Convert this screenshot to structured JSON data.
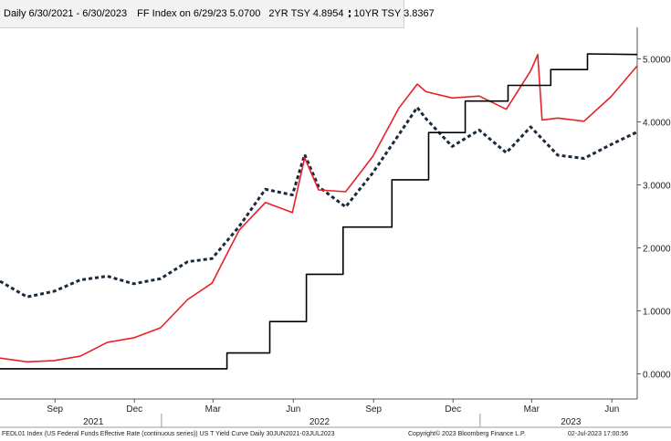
{
  "header": {
    "period": "Daily 6/30/2021 - 6/30/2023",
    "legend": [
      {
        "label": "FF Index on 6/29/23 5.0700",
        "color": "#000000"
      },
      {
        "label": "2YR TSY 4.8954",
        "color": "#e8202a"
      },
      {
        "label": "10YR TSY 3.8367",
        "color": "#1a2a3a"
      }
    ]
  },
  "footer": {
    "left": "FEDL01 Index (US Federal Funds Effective Rate (continuous series)) US T Yield Curve  Daily 30JUN2021-03JUL2023",
    "center": "Copyright© 2023 Bloomberg Finance L.P.",
    "right": "02-Jul-2023 17:00:56"
  },
  "chart_data": {
    "type": "line",
    "ylim": [
      -0.4,
      5.5
    ],
    "xlim": [
      "2021-06-30",
      "2023-06-30"
    ],
    "yticks": [
      "0.0000",
      "1.0000",
      "2.0000",
      "3.0000",
      "4.0000",
      "5.0000"
    ],
    "xticks_month": [
      {
        "label": "Sep",
        "date": "2021-09-01"
      },
      {
        "label": "Dec",
        "date": "2021-12-01"
      },
      {
        "label": "Mar",
        "date": "2022-03-01"
      },
      {
        "label": "Jun",
        "date": "2022-06-01"
      },
      {
        "label": "Sep",
        "date": "2022-09-01"
      },
      {
        "label": "Dec",
        "date": "2022-12-01"
      },
      {
        "label": "Mar",
        "date": "2023-03-01"
      },
      {
        "label": "Jun",
        "date": "2023-06-01"
      }
    ],
    "xticks_year": [
      {
        "label": "2021",
        "date": "2021-10-15"
      },
      {
        "label": "2022",
        "date": "2022-07-01"
      },
      {
        "label": "2023",
        "date": "2023-04-15"
      }
    ],
    "series": [
      {
        "name": "FF Index",
        "color": "#000000",
        "style": "solid",
        "x": [
          "2021-06-30",
          "2022-03-17",
          "2022-03-17",
          "2022-05-05",
          "2022-05-05",
          "2022-06-16",
          "2022-06-16",
          "2022-07-28",
          "2022-07-28",
          "2022-09-22",
          "2022-09-22",
          "2022-11-03",
          "2022-11-03",
          "2022-12-15",
          "2022-12-15",
          "2023-02-02",
          "2023-02-02",
          "2023-03-23",
          "2023-03-23",
          "2023-05-04",
          "2023-05-04",
          "2023-06-30"
        ],
        "values": [
          0.08,
          0.08,
          0.33,
          0.33,
          0.83,
          0.83,
          1.58,
          1.58,
          2.33,
          2.33,
          3.08,
          3.08,
          3.83,
          3.83,
          4.33,
          4.33,
          4.58,
          4.58,
          4.83,
          4.83,
          5.08,
          5.07
        ]
      },
      {
        "name": "2YR TSY",
        "color": "#e8202a",
        "style": "solid",
        "x": [
          "2021-06-30",
          "2021-07-31",
          "2021-08-31",
          "2021-09-30",
          "2021-10-31",
          "2021-11-30",
          "2021-12-31",
          "2022-01-31",
          "2022-02-28",
          "2022-03-15",
          "2022-03-31",
          "2022-04-30",
          "2022-05-31",
          "2022-06-14",
          "2022-06-30",
          "2022-07-31",
          "2022-08-31",
          "2022-09-30",
          "2022-10-21",
          "2022-10-31",
          "2022-11-30",
          "2022-12-31",
          "2023-01-31",
          "2023-02-28",
          "2023-03-08",
          "2023-03-13",
          "2023-03-31",
          "2023-04-30",
          "2023-05-31",
          "2023-06-30"
        ],
        "values": [
          0.25,
          0.19,
          0.21,
          0.28,
          0.5,
          0.57,
          0.73,
          1.18,
          1.44,
          1.85,
          2.28,
          2.72,
          2.56,
          3.43,
          2.92,
          2.89,
          3.45,
          4.22,
          4.6,
          4.48,
          4.38,
          4.41,
          4.2,
          4.81,
          5.07,
          4.03,
          4.06,
          4.01,
          4.4,
          4.89
        ]
      },
      {
        "name": "10YR TSY",
        "color": "#1a2a3a",
        "style": "dashed",
        "x": [
          "2021-06-30",
          "2021-07-31",
          "2021-08-31",
          "2021-09-30",
          "2021-10-31",
          "2021-11-30",
          "2021-12-31",
          "2022-01-31",
          "2022-02-28",
          "2022-03-31",
          "2022-04-30",
          "2022-05-31",
          "2022-06-14",
          "2022-06-30",
          "2022-07-31",
          "2022-08-31",
          "2022-09-30",
          "2022-10-21",
          "2022-10-31",
          "2022-11-30",
          "2022-12-31",
          "2023-01-31",
          "2023-02-28",
          "2023-03-31",
          "2023-04-30",
          "2023-05-31",
          "2023-06-30"
        ],
        "values": [
          1.47,
          1.22,
          1.31,
          1.49,
          1.55,
          1.43,
          1.51,
          1.78,
          1.83,
          2.34,
          2.93,
          2.84,
          3.48,
          2.97,
          2.65,
          3.19,
          3.8,
          4.23,
          4.05,
          3.61,
          3.87,
          3.51,
          3.92,
          3.47,
          3.42,
          3.64,
          3.84
        ]
      }
    ]
  }
}
